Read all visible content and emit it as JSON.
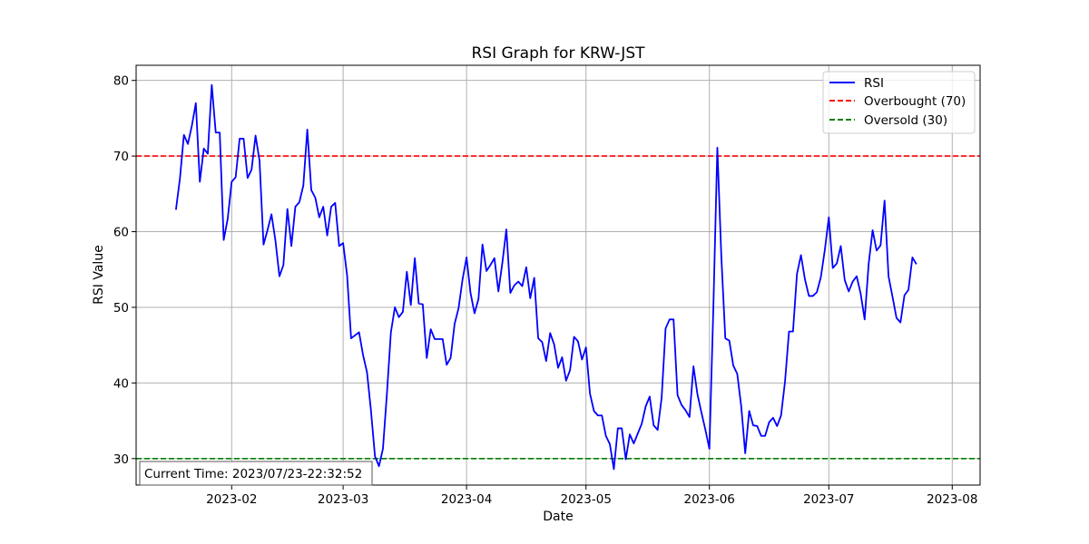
{
  "chart_data": {
    "type": "line",
    "title": "RSI Graph for KRW-JST",
    "xlabel": "Date",
    "ylabel": "RSI Value",
    "xlim": [
      "2023-01-08",
      "2023-08-08"
    ],
    "ylim": [
      26.5,
      82.0
    ],
    "x_ticks": [
      "2023-02-01",
      "2023-03-01",
      "2023-04-01",
      "2023-05-01",
      "2023-06-01",
      "2023-07-01",
      "2023-08-01"
    ],
    "x_tick_labels": [
      "2023-02",
      "2023-03",
      "2023-04",
      "2023-05",
      "2023-06",
      "2023-07",
      "2023-08"
    ],
    "y_ticks": [
      30,
      40,
      50,
      60,
      70,
      80
    ],
    "y_tick_labels": [
      "30",
      "40",
      "50",
      "60",
      "70",
      "80"
    ],
    "grid": true,
    "legend_position": "top-right",
    "series": [
      {
        "name": "RSI",
        "color": "#0000ff",
        "style": "solid",
        "points": [
          [
            "2023-01-18",
            62.9
          ],
          [
            "2023-01-19",
            67.0
          ],
          [
            "2023-01-20",
            72.8
          ],
          [
            "2023-01-21",
            71.6
          ],
          [
            "2023-01-22",
            74.0
          ],
          [
            "2023-01-23",
            77.0
          ],
          [
            "2023-01-24",
            66.6
          ],
          [
            "2023-01-25",
            71.0
          ],
          [
            "2023-01-26",
            70.3
          ],
          [
            "2023-01-27",
            79.4
          ],
          [
            "2023-01-28",
            73.1
          ],
          [
            "2023-01-29",
            73.1
          ],
          [
            "2023-01-30",
            58.9
          ],
          [
            "2023-01-31",
            61.7
          ],
          [
            "2023-02-01",
            66.6
          ],
          [
            "2023-02-02",
            67.2
          ],
          [
            "2023-02-03",
            72.3
          ],
          [
            "2023-02-04",
            72.3
          ],
          [
            "2023-02-05",
            67.1
          ],
          [
            "2023-02-06",
            68.2
          ],
          [
            "2023-02-07",
            72.7
          ],
          [
            "2023-02-08",
            69.4
          ],
          [
            "2023-02-09",
            58.3
          ],
          [
            "2023-02-10",
            60.2
          ],
          [
            "2023-02-11",
            62.3
          ],
          [
            "2023-02-12",
            58.8
          ],
          [
            "2023-02-13",
            54.1
          ],
          [
            "2023-02-14",
            55.6
          ],
          [
            "2023-02-15",
            63.0
          ],
          [
            "2023-02-16",
            58.1
          ],
          [
            "2023-02-17",
            63.3
          ],
          [
            "2023-02-18",
            63.9
          ],
          [
            "2023-02-19",
            66.1
          ],
          [
            "2023-02-20",
            73.5
          ],
          [
            "2023-02-21",
            65.5
          ],
          [
            "2023-02-22",
            64.5
          ],
          [
            "2023-02-23",
            61.9
          ],
          [
            "2023-02-24",
            63.3
          ],
          [
            "2023-02-25",
            59.5
          ],
          [
            "2023-02-26",
            63.3
          ],
          [
            "2023-02-27",
            63.8
          ],
          [
            "2023-02-28",
            58.1
          ],
          [
            "2023-03-01",
            58.5
          ],
          [
            "2023-03-02",
            54.2
          ],
          [
            "2023-03-03",
            45.9
          ],
          [
            "2023-03-04",
            46.3
          ],
          [
            "2023-03-05",
            46.7
          ],
          [
            "2023-03-06",
            43.7
          ],
          [
            "2023-03-07",
            41.4
          ],
          [
            "2023-03-08",
            36.3
          ],
          [
            "2023-03-09",
            30.3
          ],
          [
            "2023-03-10",
            29.0
          ],
          [
            "2023-03-11",
            31.3
          ],
          [
            "2023-03-12",
            38.6
          ],
          [
            "2023-03-13",
            46.7
          ],
          [
            "2023-03-14",
            50.0
          ],
          [
            "2023-03-15",
            48.7
          ],
          [
            "2023-03-16",
            49.4
          ],
          [
            "2023-03-17",
            54.7
          ],
          [
            "2023-03-18",
            50.3
          ],
          [
            "2023-03-19",
            56.5
          ],
          [
            "2023-03-20",
            50.5
          ],
          [
            "2023-03-21",
            50.4
          ],
          [
            "2023-03-22",
            43.3
          ],
          [
            "2023-03-23",
            47.1
          ],
          [
            "2023-03-24",
            45.8
          ],
          [
            "2023-03-25",
            45.8
          ],
          [
            "2023-03-26",
            45.8
          ],
          [
            "2023-03-27",
            42.4
          ],
          [
            "2023-03-28",
            43.3
          ],
          [
            "2023-03-29",
            47.8
          ],
          [
            "2023-03-30",
            49.9
          ],
          [
            "2023-03-31",
            53.7
          ],
          [
            "2023-04-01",
            56.6
          ],
          [
            "2023-04-02",
            51.9
          ],
          [
            "2023-04-03",
            49.2
          ],
          [
            "2023-04-04",
            51.1
          ],
          [
            "2023-04-05",
            58.3
          ],
          [
            "2023-04-06",
            54.8
          ],
          [
            "2023-04-07",
            55.6
          ],
          [
            "2023-04-08",
            56.5
          ],
          [
            "2023-04-09",
            52.1
          ],
          [
            "2023-04-10",
            55.9
          ],
          [
            "2023-04-11",
            60.3
          ],
          [
            "2023-04-12",
            51.9
          ],
          [
            "2023-04-13",
            52.9
          ],
          [
            "2023-04-14",
            53.4
          ],
          [
            "2023-04-15",
            52.8
          ],
          [
            "2023-04-16",
            55.3
          ],
          [
            "2023-04-17",
            51.2
          ],
          [
            "2023-04-18",
            53.9
          ],
          [
            "2023-04-19",
            45.9
          ],
          [
            "2023-04-20",
            45.4
          ],
          [
            "2023-04-21",
            42.9
          ],
          [
            "2023-04-22",
            46.6
          ],
          [
            "2023-04-23",
            45.1
          ],
          [
            "2023-04-24",
            42.0
          ],
          [
            "2023-04-25",
            43.4
          ],
          [
            "2023-04-26",
            40.3
          ],
          [
            "2023-04-27",
            41.7
          ],
          [
            "2023-04-28",
            46.1
          ],
          [
            "2023-04-29",
            45.5
          ],
          [
            "2023-04-30",
            43.1
          ],
          [
            "2023-05-01",
            44.7
          ],
          [
            "2023-05-02",
            38.6
          ],
          [
            "2023-05-03",
            36.3
          ],
          [
            "2023-05-04",
            35.7
          ],
          [
            "2023-05-05",
            35.7
          ],
          [
            "2023-05-06",
            33.0
          ],
          [
            "2023-05-07",
            31.9
          ],
          [
            "2023-05-08",
            28.6
          ],
          [
            "2023-05-09",
            34.0
          ],
          [
            "2023-05-10",
            34.0
          ],
          [
            "2023-05-11",
            29.9
          ],
          [
            "2023-05-12",
            33.2
          ],
          [
            "2023-05-13",
            32.0
          ],
          [
            "2023-05-14",
            33.3
          ],
          [
            "2023-05-15",
            34.6
          ],
          [
            "2023-05-16",
            36.9
          ],
          [
            "2023-05-17",
            38.2
          ],
          [
            "2023-05-18",
            34.4
          ],
          [
            "2023-05-19",
            33.8
          ],
          [
            "2023-05-20",
            38.0
          ],
          [
            "2023-05-21",
            47.2
          ],
          [
            "2023-05-22",
            48.4
          ],
          [
            "2023-05-23",
            48.4
          ],
          [
            "2023-05-24",
            38.4
          ],
          [
            "2023-05-25",
            37.1
          ],
          [
            "2023-05-26",
            36.4
          ],
          [
            "2023-05-27",
            35.5
          ],
          [
            "2023-05-28",
            42.2
          ],
          [
            "2023-05-29",
            38.5
          ],
          [
            "2023-05-30",
            36.1
          ],
          [
            "2023-05-31",
            33.8
          ],
          [
            "2023-06-01",
            31.3
          ],
          [
            "2023-06-02",
            50.0
          ],
          [
            "2023-06-03",
            71.1
          ],
          [
            "2023-06-04",
            56.7
          ],
          [
            "2023-06-05",
            45.9
          ],
          [
            "2023-06-06",
            45.6
          ],
          [
            "2023-06-07",
            42.3
          ],
          [
            "2023-06-08",
            41.2
          ],
          [
            "2023-06-09",
            36.9
          ],
          [
            "2023-06-10",
            30.7
          ],
          [
            "2023-06-11",
            36.3
          ],
          [
            "2023-06-12",
            34.4
          ],
          [
            "2023-06-13",
            34.3
          ],
          [
            "2023-06-14",
            33.0
          ],
          [
            "2023-06-15",
            33.0
          ],
          [
            "2023-06-16",
            34.8
          ],
          [
            "2023-06-17",
            35.4
          ],
          [
            "2023-06-18",
            34.3
          ],
          [
            "2023-06-19",
            35.7
          ],
          [
            "2023-06-20",
            40.2
          ],
          [
            "2023-06-21",
            46.8
          ],
          [
            "2023-06-22",
            46.8
          ],
          [
            "2023-06-23",
            54.4
          ],
          [
            "2023-06-24",
            56.9
          ],
          [
            "2023-06-25",
            53.7
          ],
          [
            "2023-06-26",
            51.5
          ],
          [
            "2023-06-27",
            51.5
          ],
          [
            "2023-06-28",
            52.0
          ],
          [
            "2023-06-29",
            54.0
          ],
          [
            "2023-06-30",
            57.6
          ],
          [
            "2023-07-01",
            61.9
          ],
          [
            "2023-07-02",
            55.2
          ],
          [
            "2023-07-03",
            55.8
          ],
          [
            "2023-07-04",
            58.1
          ],
          [
            "2023-07-05",
            53.6
          ],
          [
            "2023-07-06",
            52.1
          ],
          [
            "2023-07-07",
            53.4
          ],
          [
            "2023-07-08",
            54.1
          ],
          [
            "2023-07-09",
            51.8
          ],
          [
            "2023-07-10",
            48.4
          ],
          [
            "2023-07-11",
            55.7
          ],
          [
            "2023-07-12",
            60.2
          ],
          [
            "2023-07-13",
            57.5
          ],
          [
            "2023-07-14",
            58.2
          ],
          [
            "2023-07-15",
            64.1
          ],
          [
            "2023-07-16",
            54.1
          ],
          [
            "2023-07-17",
            51.4
          ],
          [
            "2023-07-18",
            48.6
          ],
          [
            "2023-07-19",
            48.0
          ],
          [
            "2023-07-20",
            51.6
          ],
          [
            "2023-07-21",
            52.3
          ],
          [
            "2023-07-22",
            56.6
          ],
          [
            "2023-07-23",
            55.7
          ]
        ]
      },
      {
        "name": "Overbought (70)",
        "color": "#ff0000",
        "style": "dashed",
        "value": 70
      },
      {
        "name": "Oversold (30)",
        "color": "#008000",
        "style": "dashed",
        "value": 30
      }
    ],
    "annotation": "Current Time: 2023/07/23-22:32:52"
  }
}
